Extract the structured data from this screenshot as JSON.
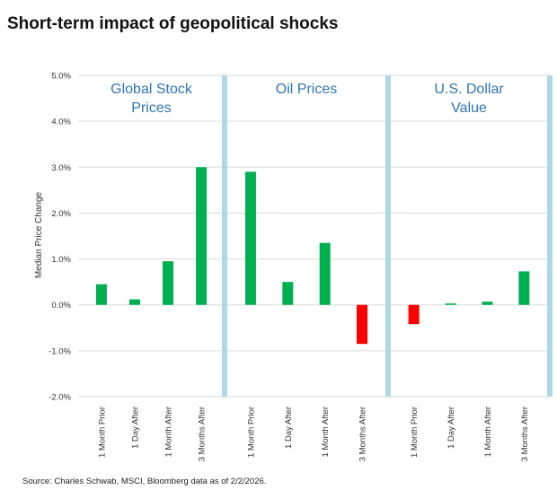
{
  "title": "Short-term impact of geopolitical shocks",
  "source": "Source: Charles Schwab, MSCI, Bloomberg data as of 2/2/2026.",
  "colors": {
    "positive": "#00b050",
    "negative": "#ff0000",
    "divider": "#add8e6",
    "panel_title": "#2e74b5",
    "grid": "#d9d9d9"
  },
  "chart_data": {
    "type": "bar",
    "ylabel": "Median Price Change",
    "ylim": [
      -2.0,
      5.0
    ],
    "yticks": [
      "5.0%",
      "4.0%",
      "3.0%",
      "2.0%",
      "1.0%",
      "0.0%",
      "-1.0%",
      "-2.0%"
    ],
    "grid": true,
    "categories": [
      "1 Month Prior",
      "1 Day After",
      "1 Month After",
      "3 Months After"
    ],
    "panels": [
      {
        "title_lines": [
          "Global Stock",
          "Prices"
        ],
        "values": [
          0.45,
          0.12,
          0.95,
          3.0
        ]
      },
      {
        "title_lines": [
          "Oil Prices"
        ],
        "values": [
          2.9,
          0.5,
          1.35,
          -0.85
        ]
      },
      {
        "title_lines": [
          "U.S. Dollar",
          "Value"
        ],
        "values": [
          -0.42,
          0.03,
          0.07,
          0.73
        ]
      }
    ]
  }
}
